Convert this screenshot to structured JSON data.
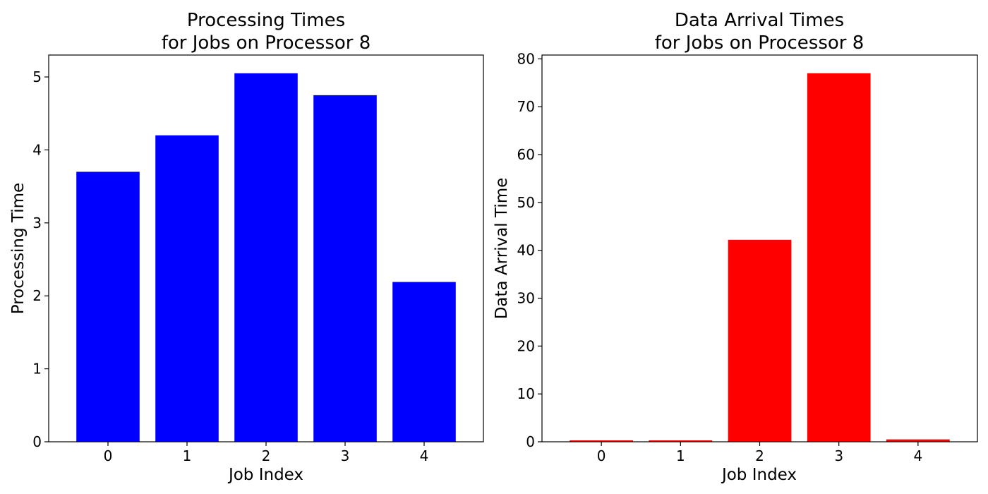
{
  "chart_data": [
    {
      "type": "bar",
      "title_line1": "Processing Times",
      "title_line2": "for Jobs on Processor 8",
      "xlabel": "Job Index",
      "ylabel": "Processing Time",
      "categories": [
        "0",
        "1",
        "2",
        "3",
        "4"
      ],
      "values": [
        3.7,
        4.2,
        5.05,
        4.75,
        2.19
      ],
      "ylim": [
        0,
        5.3
      ],
      "yticks": [
        0,
        1,
        2,
        3,
        4,
        5
      ],
      "color": "#0000ff",
      "grid": false
    },
    {
      "type": "bar",
      "title_line1": "Data Arrival Times",
      "title_line2": "for Jobs on Processor 8",
      "xlabel": "Job Index",
      "ylabel": "Data Arrival Time",
      "categories": [
        "0",
        "1",
        "2",
        "3",
        "4"
      ],
      "values": [
        0.3,
        0.3,
        42.2,
        77.0,
        0.5
      ],
      "ylim": [
        0,
        80.8
      ],
      "yticks": [
        0,
        10,
        20,
        30,
        40,
        50,
        60,
        70,
        80
      ],
      "color": "#ff0000",
      "grid": false
    }
  ]
}
